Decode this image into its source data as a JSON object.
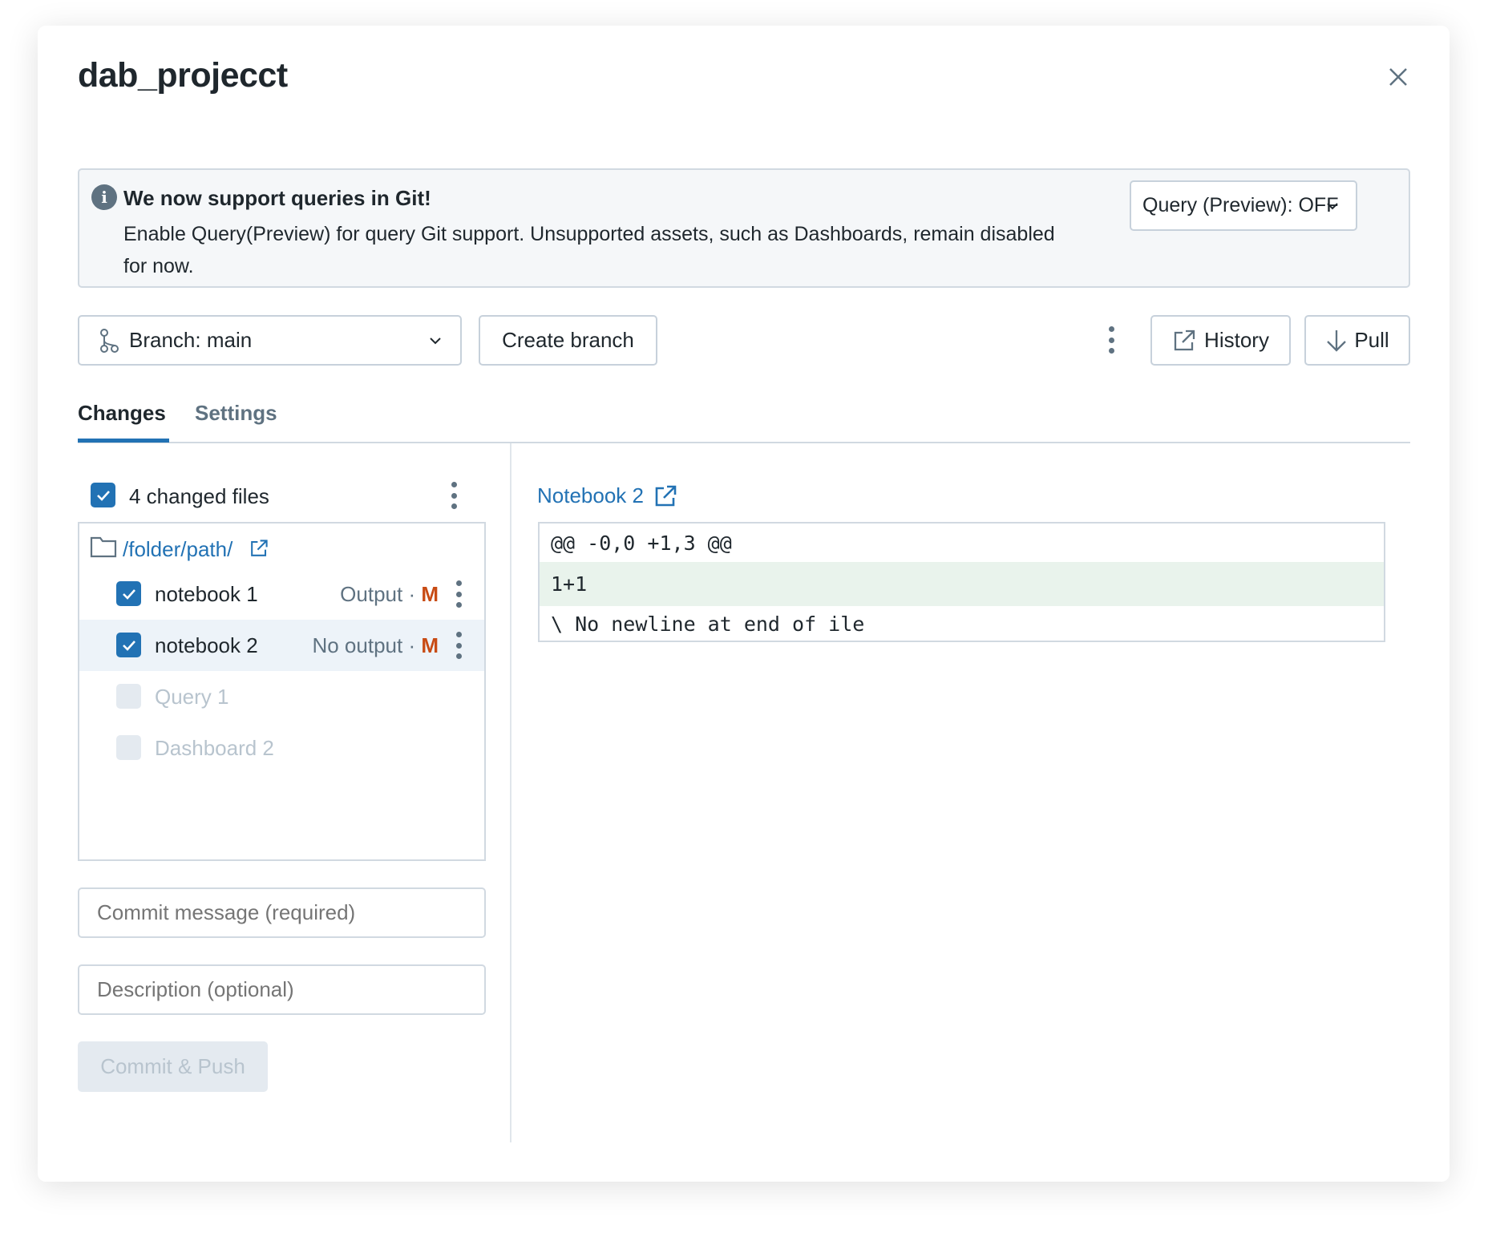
{
  "dialog": {
    "title": "dab_projecct"
  },
  "banner": {
    "title": "We now support queries in Git!",
    "text": "Enable Query(Preview) for query Git support. Unsupported assets, such as Dashboards, remain disabled for now.",
    "dropdown_label": "Query (Preview): OFF"
  },
  "toolbar": {
    "branch_label": "Branch: main",
    "create_branch": "Create branch",
    "history": "History",
    "pull": "Pull"
  },
  "tabs": [
    {
      "label": "Changes",
      "active": true
    },
    {
      "label": "Settings",
      "active": false
    }
  ],
  "changes": {
    "summary": "4 changed files",
    "folder": "/folder/path/",
    "files": [
      {
        "name": "notebook 1",
        "status": "Output",
        "badge": "M",
        "checked": true,
        "enabled": true
      },
      {
        "name": "notebook 2",
        "status": "No output",
        "badge": "M",
        "checked": true,
        "enabled": true,
        "selected": true
      },
      {
        "name": "Query 1",
        "checked": false,
        "enabled": false
      },
      {
        "name": "Dashboard 2",
        "checked": false,
        "enabled": false
      }
    ],
    "commit_placeholder": "Commit message (required)",
    "description_placeholder": "Description (optional)",
    "commit_button": "Commit & Push"
  },
  "diff": {
    "file_link": "Notebook 2",
    "lines": [
      "@@ -0,0 +1,3 @@",
      "1+1",
      "\\ No newline at end of ile"
    ]
  },
  "colors": {
    "accent": "#2272b4",
    "modified": "#c84b14",
    "added_line_bg": "#e9f3ec",
    "selected_row_bg": "#edf3f9"
  }
}
